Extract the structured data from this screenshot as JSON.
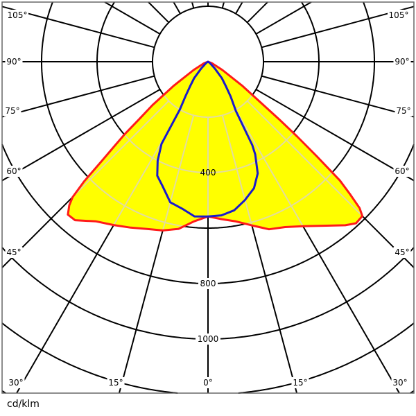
{
  "chart_data": {
    "type": "polar",
    "title": "",
    "unit_label": "cd/klm",
    "radial_axis": {
      "max": 1200,
      "ring_step": 200,
      "ring_labels": [
        {
          "value": 400,
          "label": "400"
        },
        {
          "value": 800,
          "label": "800"
        },
        {
          "value": 1000,
          "label": "1000"
        }
      ]
    },
    "angular_axis": {
      "step_deg": 15,
      "zero_direction": "down",
      "labels": [
        "0°",
        "15°",
        "30°",
        "45°",
        "60°",
        "75°",
        "90°",
        "105°"
      ]
    },
    "grid": true,
    "fill_color": "#ffff00",
    "series": [
      {
        "color": "#ff1a1a",
        "filled": true,
        "right": [
          [
            0,
            558
          ],
          [
            5,
            570
          ],
          [
            10,
            585
          ],
          [
            15,
            611
          ],
          [
            20,
            643
          ],
          [
            25,
            658
          ],
          [
            30,
            685
          ],
          [
            35,
            722
          ],
          [
            40,
            770
          ],
          [
            42.5,
            790
          ],
          [
            45,
            787
          ],
          [
            46,
            760
          ],
          [
            47,
            700
          ],
          [
            48,
            640
          ],
          [
            49,
            520
          ],
          [
            50,
            420
          ],
          [
            51,
            330
          ],
          [
            52,
            254
          ],
          [
            55,
            150
          ],
          [
            60,
            60
          ],
          [
            70,
            15
          ],
          [
            90,
            0
          ]
        ],
        "left": [
          [
            0,
            558
          ],
          [
            5,
            578
          ],
          [
            10,
            612
          ],
          [
            15,
            630
          ],
          [
            20,
            642
          ],
          [
            25,
            660
          ],
          [
            30,
            680
          ],
          [
            35,
            703
          ],
          [
            40,
            746
          ],
          [
            42.5,
            748
          ],
          [
            44,
            720
          ],
          [
            45,
            690
          ],
          [
            46,
            620
          ],
          [
            47,
            520
          ],
          [
            48,
            450
          ],
          [
            49,
            397
          ],
          [
            50,
            330
          ],
          [
            52,
            254
          ],
          [
            55,
            150
          ],
          [
            60,
            60
          ],
          [
            70,
            15
          ],
          [
            90,
            0
          ]
        ]
      },
      {
        "color": "#1a1acc",
        "filled": false,
        "right": [
          [
            0,
            558
          ],
          [
            5,
            556
          ],
          [
            10,
            544
          ],
          [
            15,
            516
          ],
          [
            20,
            485
          ],
          [
            24,
            441
          ],
          [
            27,
            375
          ],
          [
            28,
            340
          ],
          [
            29.5,
            204
          ],
          [
            33,
            150
          ],
          [
            36,
            110
          ],
          [
            40,
            78
          ],
          [
            45,
            35
          ],
          [
            55,
            8
          ],
          [
            90,
            0
          ]
        ],
        "left": [
          [
            0,
            558
          ],
          [
            5,
            560
          ],
          [
            10,
            538
          ],
          [
            15,
            525
          ],
          [
            20,
            478
          ],
          [
            24,
            450
          ],
          [
            27,
            400
          ],
          [
            29.5,
            340
          ],
          [
            30.5,
            200
          ],
          [
            33,
            150
          ],
          [
            36,
            110
          ],
          [
            40,
            78
          ],
          [
            45,
            35
          ],
          [
            55,
            8
          ],
          [
            90,
            0
          ]
        ]
      }
    ]
  }
}
